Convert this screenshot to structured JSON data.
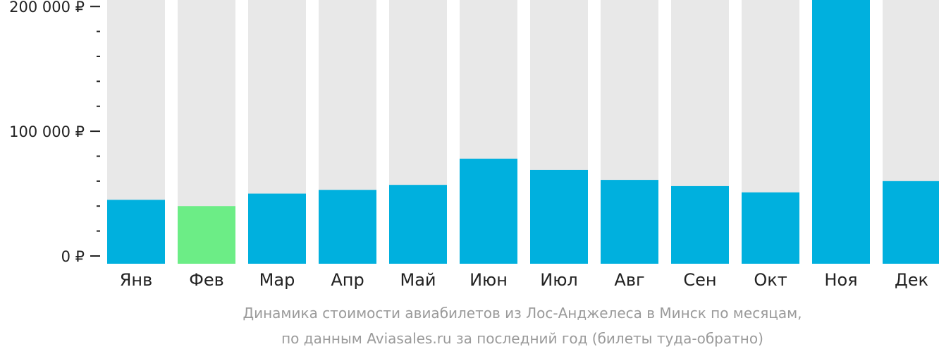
{
  "chart_data": {
    "type": "bar",
    "categories": [
      "Янв",
      "Фев",
      "Мар",
      "Апр",
      "Май",
      "Июн",
      "Июл",
      "Авг",
      "Сен",
      "Окт",
      "Ноя",
      "Дек"
    ],
    "values": [
      45000,
      40000,
      50000,
      53000,
      57000,
      78000,
      69000,
      61000,
      56000,
      51000,
      225000,
      60000
    ],
    "ylim": [
      0,
      200000
    ],
    "yticks": [
      {
        "value": 0,
        "label": "0 ₽"
      },
      {
        "value": 100000,
        "label": "100 000 ₽"
      },
      {
        "value": 200000,
        "label": "200 000 ₽"
      }
    ],
    "highlight_index": 1,
    "colors": {
      "bar": "#00b0de",
      "highlight": "#6ced86",
      "background_bar": "#e8e8e8",
      "axis": "#222222"
    },
    "title": "",
    "xlabel": "",
    "ylabel": "",
    "grid": false,
    "legend": "none"
  },
  "caption": {
    "line1": "Динамика стоимости авиабилетов из Лос-Анджелеса в Минск по месяцам,",
    "line2": "по данным Aviasales.ru за последний год (билеты туда-обратно)"
  }
}
